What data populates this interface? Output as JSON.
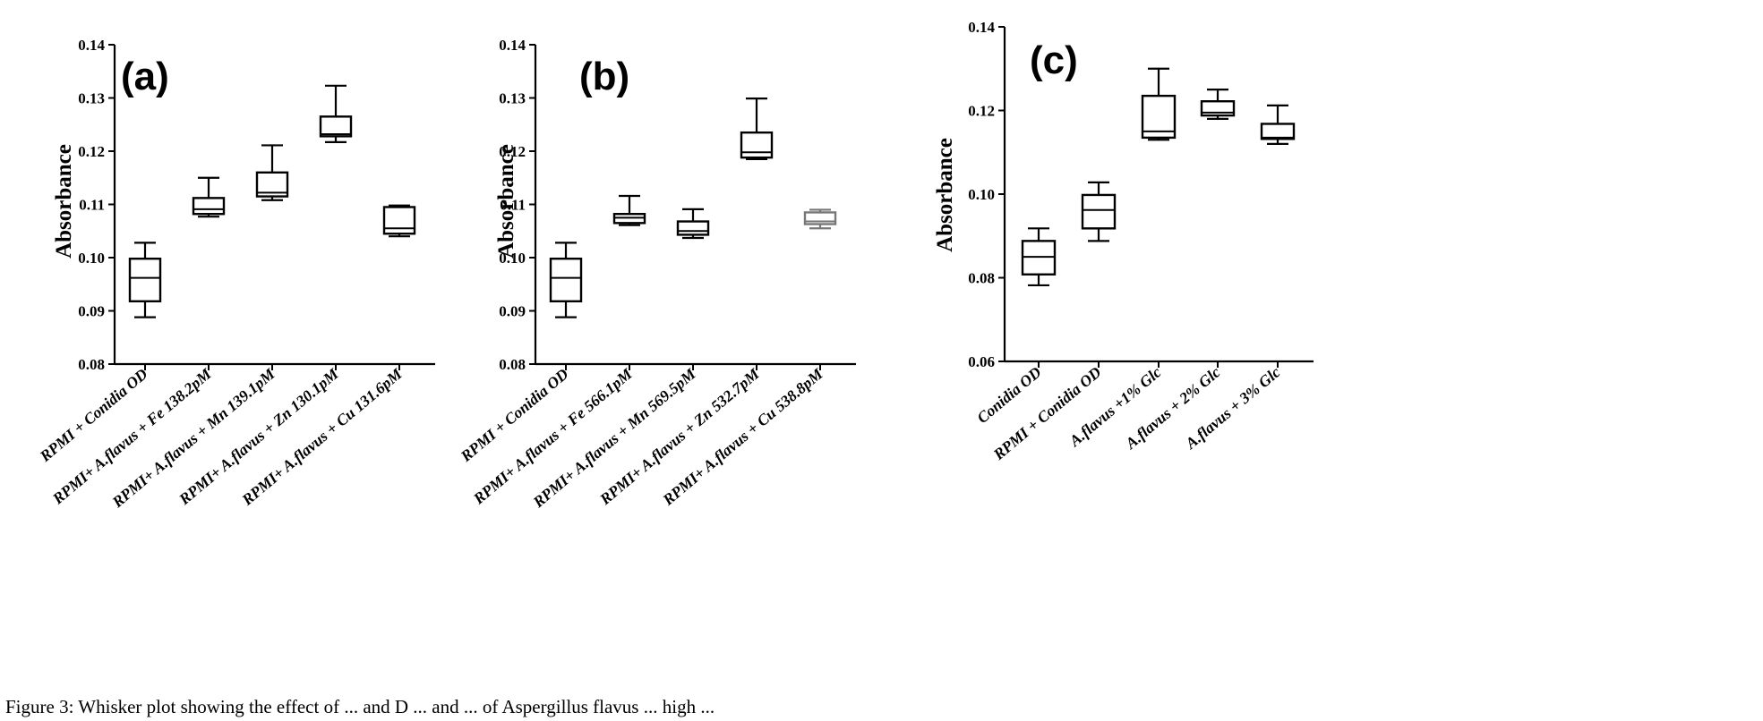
{
  "caption": "Figure 3: Whisker plot showing the effect of ... and D ... and ... of Aspergillus flavus ... high ...",
  "chart_data": [
    {
      "type": "box",
      "panel_label": "(a)",
      "ylabel": "Absorbance",
      "xlabel": "",
      "ylim": [
        0.08,
        0.14
      ],
      "yticks": [
        "0.08",
        "0.09",
        "0.10",
        "0.11",
        "0.12",
        "0.13",
        "0.14"
      ],
      "categories": [
        "RPMI + Conidia OD",
        "RPMI+ A.flavus + Fe 138.2pM",
        "RPMI+ A.flavus + Mn 139.1pM",
        "RPMI+ A.flavus + Zn 130.1pM",
        "RPMI+ A.flavus + Cu 131.6pM"
      ],
      "boxes": [
        {
          "min": 0.0888,
          "q1": 0.0918,
          "median": 0.0962,
          "q3": 0.0998,
          "max": 0.1028
        },
        {
          "min": 0.1077,
          "q1": 0.1082,
          "median": 0.1091,
          "q3": 0.1112,
          "max": 0.115
        },
        {
          "min": 0.1108,
          "q1": 0.1115,
          "median": 0.1122,
          "q3": 0.116,
          "max": 0.1211
        },
        {
          "min": 0.1217,
          "q1": 0.1228,
          "median": 0.1232,
          "q3": 0.1265,
          "max": 0.1323
        },
        {
          "min": 0.104,
          "q1": 0.1045,
          "median": 0.1055,
          "q3": 0.1095,
          "max": 0.1098
        }
      ]
    },
    {
      "type": "box",
      "panel_label": "(b)",
      "ylabel": "Absorbance",
      "xlabel": "",
      "ylim": [
        0.08,
        0.14
      ],
      "yticks": [
        "0.08",
        "0.09",
        "0.10",
        "0.11",
        "0.12",
        "0.13",
        "0.14"
      ],
      "categories": [
        "RPMI + Conidia OD",
        "RPMI+ A.flavus + Fe 566.1pM",
        "RPMI+ A.flavus + Mn 569.5pM",
        "RPMI+ A.flavus + Zn 532.7pM",
        "RPMI+ A.flavus + Cu 538.8pM"
      ],
      "boxes": [
        {
          "min": 0.0888,
          "q1": 0.0918,
          "median": 0.0962,
          "q3": 0.0998,
          "max": 0.1028
        },
        {
          "min": 0.1061,
          "q1": 0.1065,
          "median": 0.1075,
          "q3": 0.1082,
          "max": 0.1116
        },
        {
          "min": 0.1037,
          "q1": 0.1043,
          "median": 0.105,
          "q3": 0.1068,
          "max": 0.1091
        },
        {
          "min": 0.1185,
          "q1": 0.1188,
          "median": 0.1198,
          "q3": 0.1235,
          "max": 0.1299
        },
        {
          "min": 0.1055,
          "q1": 0.1063,
          "median": 0.1068,
          "q3": 0.1085,
          "max": 0.109
        }
      ]
    },
    {
      "type": "box",
      "panel_label": "(c)",
      "ylabel": "Absorbance",
      "xlabel": "",
      "ylim": [
        0.06,
        0.14
      ],
      "yticks": [
        "0.06",
        "0.08",
        "0.10",
        "0.12",
        "0.14"
      ],
      "categories": [
        "Conidia OD",
        "RPMI + Conidia OD",
        "A.flavus +1% Glc",
        "A.flavus + 2% Glc",
        "A.flavus + 3% Glc"
      ],
      "boxes": [
        {
          "min": 0.0782,
          "q1": 0.0808,
          "median": 0.085,
          "q3": 0.0888,
          "max": 0.0918
        },
        {
          "min": 0.0888,
          "q1": 0.0918,
          "median": 0.0962,
          "q3": 0.0998,
          "max": 0.1028
        },
        {
          "min": 0.113,
          "q1": 0.1135,
          "median": 0.115,
          "q3": 0.1235,
          "max": 0.13
        },
        {
          "min": 0.118,
          "q1": 0.1188,
          "median": 0.1195,
          "q3": 0.1222,
          "max": 0.125
        },
        {
          "min": 0.112,
          "q1": 0.1132,
          "median": 0.1135,
          "q3": 0.1168,
          "max": 0.1212
        }
      ]
    }
  ]
}
